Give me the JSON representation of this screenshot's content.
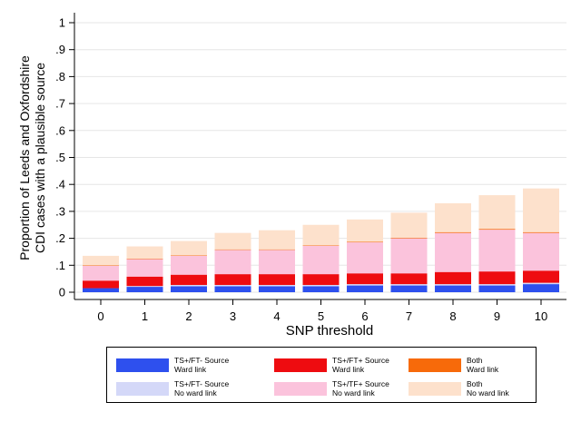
{
  "chart_data": {
    "type": "bar",
    "stacked": true,
    "xlabel": "SNP threshold",
    "ylabel": "Proportion of Leeds and Oxfordshire\nCDI cases with a plausible source",
    "ylim": [
      0,
      1
    ],
    "yticks": [
      "0",
      ".1",
      ".2",
      ".3",
      ".4",
      ".5",
      ".6",
      ".7",
      ".8",
      ".9",
      "1"
    ],
    "ytick_values": [
      0,
      0.1,
      0.2,
      0.3,
      0.4,
      0.5,
      0.6,
      0.7,
      0.8,
      0.9,
      1
    ],
    "categories": [
      "0",
      "1",
      "2",
      "3",
      "4",
      "5",
      "6",
      "7",
      "8",
      "9",
      "10"
    ],
    "grid": true,
    "legend_position": "bottom",
    "series": [
      {
        "name": "TS+/FT- Source\nWard link",
        "color": "#2e50ee",
        "values": [
          0.015,
          0.02,
          0.022,
          0.022,
          0.022,
          0.022,
          0.025,
          0.025,
          0.025,
          0.025,
          0.03
        ]
      },
      {
        "name": "TS+/FT- Source\nNo ward link",
        "color": "#d4d8f8",
        "values": [
          0.0,
          0.003,
          0.005,
          0.005,
          0.005,
          0.005,
          0.005,
          0.005,
          0.005,
          0.005,
          0.005
        ]
      },
      {
        "name": "TS+/FT+ Source\nWard link",
        "color": "#ee0c10",
        "values": [
          0.028,
          0.035,
          0.038,
          0.04,
          0.04,
          0.04,
          0.04,
          0.04,
          0.045,
          0.047,
          0.045
        ]
      },
      {
        "name": "TS+/TF+ Source\nNo ward link",
        "color": "#fbc3dc",
        "values": [
          0.055,
          0.065,
          0.07,
          0.09,
          0.09,
          0.105,
          0.115,
          0.13,
          0.145,
          0.155,
          0.14
        ]
      },
      {
        "name": "Both\nWard link",
        "color": "#f76a0a",
        "values": [
          0.002,
          0.002,
          0.002,
          0.002,
          0.002,
          0.002,
          0.002,
          0.002,
          0.003,
          0.003,
          0.003
        ]
      },
      {
        "name": "Both\nNo ward link",
        "color": "#fde1cc",
        "values": [
          0.035,
          0.045,
          0.053,
          0.061,
          0.071,
          0.076,
          0.083,
          0.093,
          0.107,
          0.125,
          0.162
        ]
      }
    ]
  }
}
